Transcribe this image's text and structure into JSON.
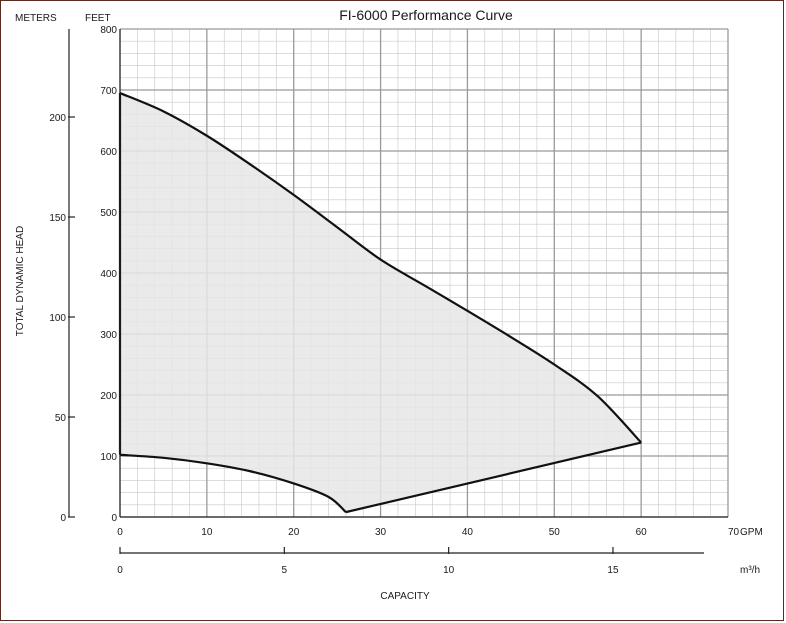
{
  "chart_data": {
    "type": "area",
    "title": "FI-6000 Performance Curve",
    "xlabel": "CAPACITY",
    "ylabel": "TOTAL DYNAMIC HEAD",
    "x_primary": {
      "unit": "GPM",
      "range": [
        0,
        70
      ],
      "ticks": [
        0,
        10,
        20,
        30,
        40,
        50,
        60,
        70
      ],
      "minor_step": 2
    },
    "x_secondary": {
      "unit": "m³/h",
      "range": [
        0,
        18.5
      ],
      "ticks": [
        0,
        5,
        10,
        15
      ]
    },
    "y_primary": {
      "unit": "FEET",
      "range": [
        0,
        800
      ],
      "ticks": [
        0,
        100,
        200,
        300,
        400,
        500,
        600,
        700,
        800
      ],
      "minor_step": 20
    },
    "y_secondary": {
      "unit": "METERS",
      "range": [
        0,
        244
      ],
      "ticks": [
        0,
        50,
        100,
        150,
        200
      ]
    },
    "grid": true,
    "fill_color": "#e6e6e6",
    "line_color": "#111111",
    "grid_color": "#c8c8c8",
    "series": [
      {
        "name": "",
        "upper_curve": {
          "x": [
            0,
            5,
            10,
            15,
            20,
            25,
            30,
            35,
            40,
            45,
            50,
            55,
            60
          ],
          "y": [
            695,
            665,
            625,
            578,
            528,
            475,
            422,
            380,
            338,
            295,
            250,
            198,
            122
          ]
        },
        "lower_curve": {
          "x": [
            0,
            5,
            10,
            15,
            20,
            24,
            26,
            30,
            40,
            50,
            60
          ],
          "y": [
            102,
            97,
            88,
            75,
            55,
            33,
            8,
            22,
            57,
            90,
            122
          ]
        }
      }
    ]
  }
}
